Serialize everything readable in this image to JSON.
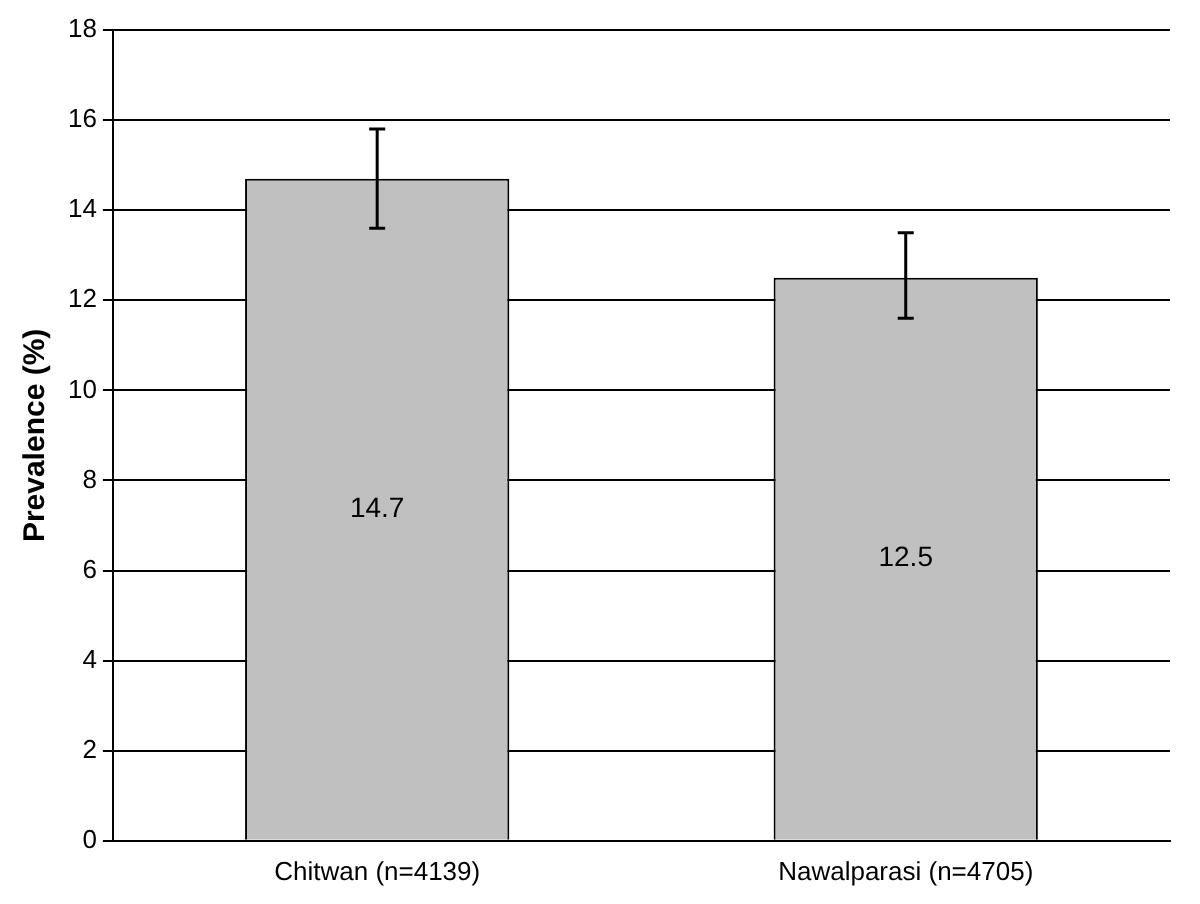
{
  "chart_data": {
    "type": "bar",
    "ylabel": "Prevalence (%)",
    "categories": [
      "Chitwan (n=4139)",
      "Nawalparasi (n=4705)"
    ],
    "values": [
      14.7,
      12.5
    ],
    "color": "#c0c0c0",
    "errors": [
      [
        13.6,
        15.8
      ],
      [
        11.6,
        13.5
      ]
    ],
    "ylim": [
      0,
      18
    ],
    "yticks": [
      0,
      2,
      4,
      6,
      8,
      10,
      12,
      14,
      16,
      18
    ],
    "grid": "y",
    "data_labels": true
  }
}
